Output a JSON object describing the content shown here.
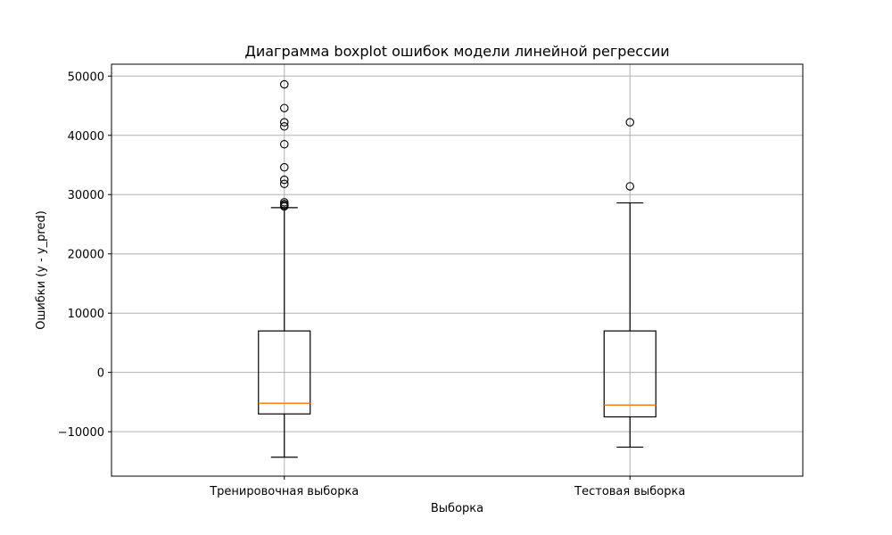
{
  "chart_data": {
    "type": "boxplot",
    "title": "Диаграмма boxplot ошибок модели линейной регрессии",
    "xlabel": "Выборка",
    "ylabel": "Ошибки (y - y_pred)",
    "ylim": [
      -17500,
      52000
    ],
    "yticks": [
      -10000,
      0,
      10000,
      20000,
      30000,
      40000,
      50000
    ],
    "ytick_labels": [
      "−10000",
      "0",
      "10000",
      "20000",
      "30000",
      "40000",
      "50000"
    ],
    "grid": true,
    "categories": [
      "Тренировочная выборка",
      "Тестовая выборка"
    ],
    "boxes": [
      {
        "name": "Тренировочная выборка",
        "whisker_low": -14300,
        "q1": -7000,
        "median": -5200,
        "q3": 7000,
        "whisker_high": 27800,
        "outliers": [
          48600,
          44600,
          42200,
          41500,
          38500,
          34600,
          32500,
          31800,
          28700,
          28400,
          28200,
          28000
        ]
      },
      {
        "name": "Тестовая выборка",
        "whisker_low": -12600,
        "q1": -7500,
        "median": -5500,
        "q3": 7000,
        "whisker_high": 28600,
        "outliers": [
          42200,
          31400
        ]
      }
    ],
    "colors": {
      "box": "#000000",
      "median": "#ff7f0e",
      "grid": "#b0b0b0",
      "outlier": "#000000"
    }
  }
}
